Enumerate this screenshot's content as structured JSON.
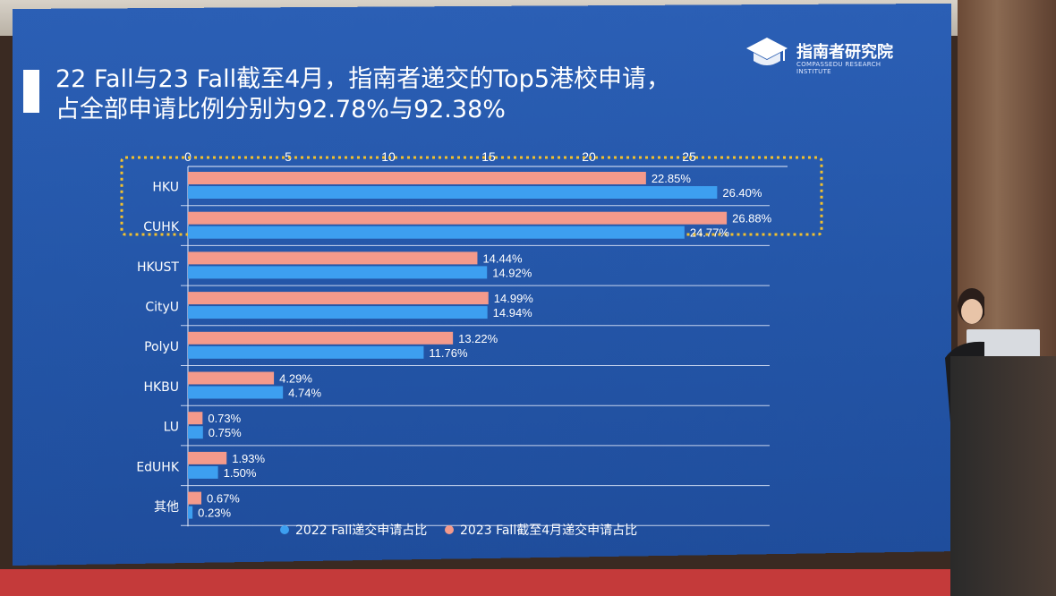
{
  "slide": {
    "title_line1": "22 Fall与23 Fall截至4月，指南者递交的Top5港校申请，",
    "title_line2": "占全部申请比例分别为92.78%与92.38%",
    "logo_cn": "指南者研究院",
    "logo_en": "COMPASSEDU RESEARCH INSTITUTE"
  },
  "colors": {
    "series_2022": "#3d9ff0",
    "series_2023": "#f49a8b",
    "highlight_border": "#f2c12e",
    "background": "#2456a8"
  },
  "chart_data": {
    "type": "bar",
    "orientation": "horizontal",
    "categories": [
      "HKU",
      "CUHK",
      "HKUST",
      "CityU",
      "PolyU",
      "HKBU",
      "LU",
      "EdUHK",
      "其他"
    ],
    "series": [
      {
        "name": "2023 Fall截至4月递交申请占比",
        "values": [
          22.85,
          26.88,
          14.44,
          14.99,
          13.22,
          4.29,
          0.73,
          1.93,
          0.67
        ],
        "labels": [
          "22.85%",
          "26.88%",
          "14.44%",
          "14.99%",
          "13.22%",
          "4.29%",
          "0.73%",
          "1.93%",
          "0.67%"
        ]
      },
      {
        "name": "2022 Fall递交申请占比",
        "values": [
          26.4,
          24.77,
          14.92,
          14.94,
          11.76,
          4.74,
          0.75,
          1.5,
          0.23
        ],
        "labels": [
          "26.40%",
          "24.77%",
          "14.92%",
          "14.94%",
          "11.76%",
          "4.74%",
          "0.75%",
          "1.50%",
          "0.23%"
        ]
      }
    ],
    "xaxis_ticks": [
      "0",
      "5",
      "10",
      "15",
      "20",
      "25"
    ],
    "xlim": [
      0,
      30
    ],
    "highlighted_categories": [
      "HKU",
      "CUHK"
    ],
    "legend": [
      "2022 Fall递交申请占比",
      "2023 Fall截至4月递交申请占比"
    ],
    "legend_position": "bottom",
    "xaxis_position": "top"
  }
}
